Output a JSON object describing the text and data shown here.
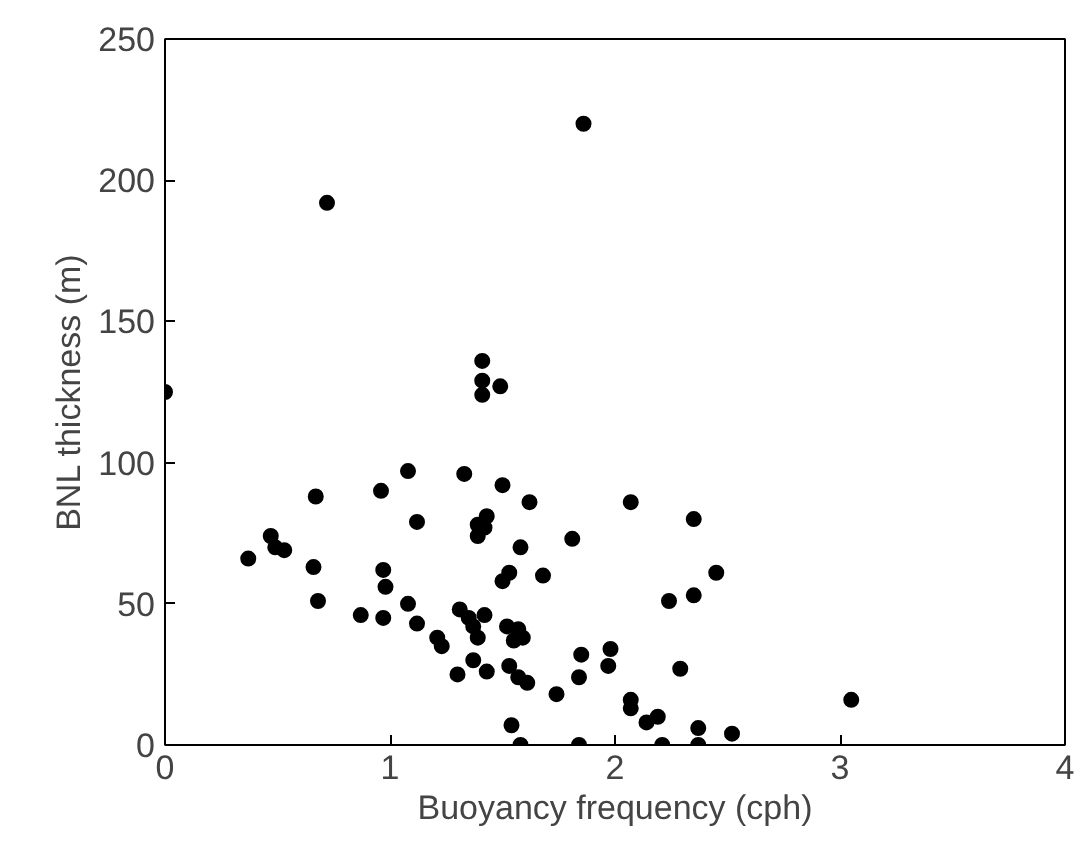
{
  "chart_data": {
    "type": "scatter",
    "xlabel": "Buoyancy frequency (cph)",
    "ylabel": "BNL thickness (m)",
    "xlim": [
      0,
      4
    ],
    "ylim": [
      0,
      250
    ],
    "xticks": [
      0,
      1,
      2,
      3,
      4
    ],
    "yticks": [
      0,
      50,
      100,
      150,
      200,
      250
    ],
    "grid": false,
    "marker": "circle",
    "series": [
      {
        "color": "#000000",
        "x": [
          0.72,
          1.86,
          1.41,
          1.41,
          1.49,
          1.41,
          0,
          0.67,
          0.96,
          1.08,
          1.33,
          1.5,
          1.62,
          1.12,
          1.43,
          1.39,
          1.42,
          1.39,
          0.47,
          0.49,
          0.53,
          0.37,
          0.66,
          1.58,
          1.81,
          0.97,
          0.98,
          1.53,
          1.5,
          1.68,
          0.68,
          1.08,
          0.87,
          0.97,
          1.12,
          1.31,
          1.42,
          1.35,
          1.37,
          1.39,
          1.21,
          1.23,
          1.52,
          1.57,
          1.55,
          1.59,
          1.37,
          1.3,
          1.43,
          1.53,
          1.57,
          1.61,
          1.74,
          1.84,
          1.85,
          1.98,
          1.97,
          1.54,
          1.58,
          1.84,
          2.07,
          2.35,
          2.45,
          2.35,
          2.24,
          2.29,
          2.07,
          2.07,
          2.14,
          2.19,
          2.37,
          2.52,
          3.05,
          2.21,
          2.37
        ],
        "values": [
          192,
          220,
          136,
          129,
          127,
          124,
          125,
          88,
          90,
          97,
          96,
          92,
          86,
          79,
          81,
          78,
          77,
          74,
          74,
          70,
          69,
          66,
          63,
          70,
          73,
          62,
          56,
          61,
          58,
          60,
          51,
          50,
          46,
          45,
          43,
          48,
          46,
          45,
          42,
          38,
          38,
          35,
          42,
          41,
          37,
          38,
          30,
          25,
          26,
          28,
          24,
          22,
          18,
          24,
          32,
          34,
          28,
          7,
          0,
          0,
          86,
          80,
          61,
          53,
          51,
          27,
          16,
          13,
          8,
          10,
          6,
          4,
          16,
          0,
          0
        ]
      }
    ]
  }
}
